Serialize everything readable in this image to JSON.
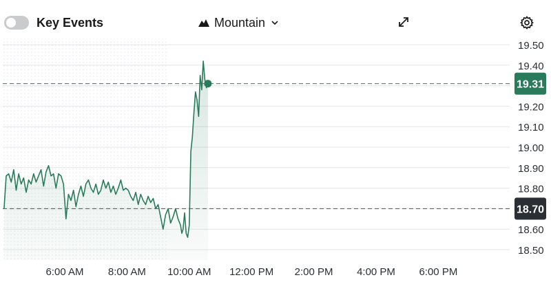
{
  "toolbar": {
    "key_events_label": "Key Events",
    "key_events_enabled": false,
    "chart_type_label": "Mountain",
    "chart_type_icon": "mountain-icon",
    "dropdown_icon": "chevron-down-icon",
    "expand_icon": "expand-arrows-icon",
    "settings_icon": "gear-icon"
  },
  "colors": {
    "line": "#2a7a5c",
    "price_badge": "#2a7a5c",
    "prev_close_badge": "#2b2f33",
    "grid": "#e3e5e8",
    "axis_text": "#2b2f33"
  },
  "chart_data": {
    "type": "area",
    "title": "",
    "xlabel": "",
    "ylabel": "",
    "ylim": [
      18.45,
      19.55
    ],
    "y_ticks": [
      "19.50",
      "19.40",
      "19.30",
      "19.20",
      "19.10",
      "19.00",
      "18.90",
      "18.80",
      "18.70",
      "18.60",
      "18.50"
    ],
    "x_ticks": [
      "6:00 AM",
      "8:00 AM",
      "10:00 AM",
      "12:00 PM",
      "2:00 PM",
      "4:00 PM",
      "6:00 PM"
    ],
    "x_tick_hours": [
      6,
      8,
      10,
      12,
      14,
      16,
      18
    ],
    "x_range_hours": [
      4.05,
      19.6
    ],
    "current_price": "19.31",
    "previous_close": "18.70",
    "legend": "none",
    "grid": true,
    "series": [
      {
        "x": [
          4.05,
          4.12,
          4.2,
          4.28,
          4.36,
          4.44,
          4.52,
          4.6,
          4.68,
          4.76,
          4.84,
          4.92,
          5.0,
          5.08,
          5.16,
          5.24,
          5.32,
          5.4,
          5.48,
          5.56,
          5.64,
          5.72,
          5.8,
          5.88,
          5.96,
          6.04,
          6.12,
          6.2,
          6.28,
          6.36,
          6.44,
          6.52,
          6.6,
          6.68,
          6.76,
          6.84,
          6.92,
          7.0,
          7.08,
          7.16,
          7.24,
          7.32,
          7.4,
          7.48,
          7.56,
          7.64,
          7.72,
          7.8,
          7.88,
          7.96,
          8.04,
          8.12,
          8.2,
          8.28,
          8.36,
          8.44,
          8.52,
          8.6,
          8.68,
          8.76,
          8.84,
          8.92,
          9.0,
          9.08,
          9.16,
          9.24,
          9.32,
          9.4,
          9.48,
          9.56,
          9.64,
          9.72,
          9.76,
          9.8,
          9.85,
          9.9,
          9.95,
          10.0,
          10.05,
          10.1,
          10.15,
          10.2,
          10.25,
          10.3,
          10.35,
          10.4,
          10.45,
          10.5,
          10.55,
          10.6
        ],
        "y": [
          18.7,
          18.86,
          18.87,
          18.83,
          18.89,
          18.79,
          18.87,
          18.82,
          18.85,
          18.78,
          18.84,
          18.82,
          18.87,
          18.83,
          18.86,
          18.89,
          18.81,
          18.88,
          18.91,
          18.86,
          18.87,
          18.8,
          18.87,
          18.86,
          18.82,
          18.65,
          18.77,
          18.74,
          18.79,
          18.71,
          18.77,
          18.81,
          18.76,
          18.82,
          18.84,
          18.8,
          18.78,
          18.82,
          18.77,
          18.79,
          18.84,
          18.8,
          18.83,
          18.78,
          18.81,
          18.77,
          18.8,
          18.84,
          18.79,
          18.8,
          18.79,
          18.76,
          18.74,
          18.78,
          18.72,
          18.77,
          18.74,
          18.72,
          18.76,
          18.73,
          18.75,
          18.7,
          18.72,
          18.66,
          18.6,
          18.67,
          18.7,
          18.63,
          18.66,
          18.7,
          18.65,
          18.62,
          18.58,
          18.6,
          18.68,
          18.58,
          18.56,
          18.62,
          18.98,
          19.05,
          19.17,
          19.27,
          19.23,
          19.15,
          19.35,
          19.28,
          19.42,
          19.33,
          19.29,
          19.31
        ]
      }
    ]
  }
}
